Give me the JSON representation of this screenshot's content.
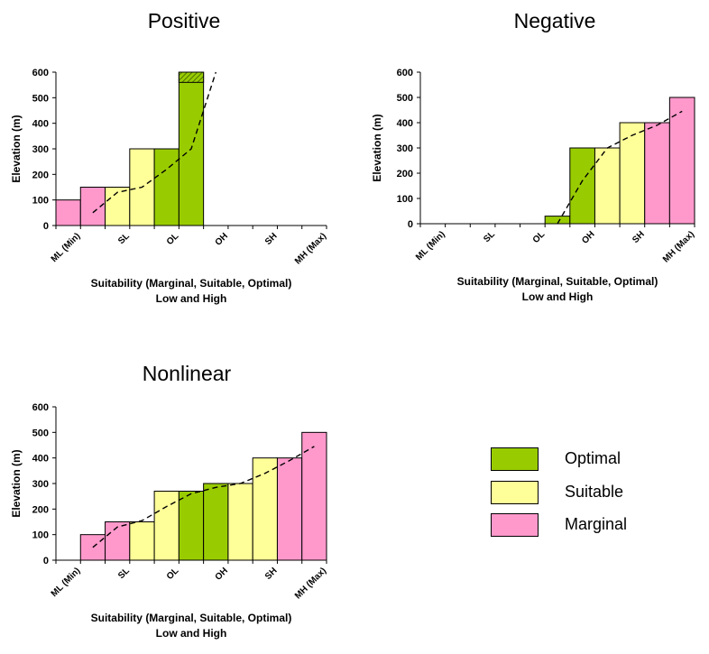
{
  "colors": {
    "optimal": "#99cc00",
    "suitable": "#ffff99",
    "marginal": "#ff99cc"
  },
  "legend": {
    "items": [
      {
        "label": "Optimal",
        "class": "optimal"
      },
      {
        "label": "Suitable",
        "class": "suitable"
      },
      {
        "label": "Marginal",
        "class": "marginal"
      }
    ]
  },
  "chart_data": [
    {
      "type": "bar",
      "title": "Positive",
      "xlabel_line1": "Suitability (Marginal, Suitable, Optimal)",
      "xlabel_line2": "Low and High",
      "ylabel": "Elevation (m)",
      "ylim": [
        0,
        600
      ],
      "yticks": [
        "0",
        "100",
        "200",
        "300",
        "400",
        "500",
        "600"
      ],
      "categories": [
        "ML (Min)",
        "SL",
        "OL",
        "OH",
        "SH",
        "MH (Max)"
      ],
      "bars": [
        {
          "value": 100,
          "class": "marginal"
        },
        {
          "value": 150,
          "class": "marginal"
        },
        {
          "value": 150,
          "class": "suitable"
        },
        {
          "value": 300,
          "class": "suitable"
        },
        {
          "value": 300,
          "class": "optimal"
        },
        {
          "value": 600,
          "class": "optimal",
          "hatched_from": 560
        },
        {
          "value": 0,
          "class": "none"
        },
        {
          "value": 0,
          "class": "none"
        },
        {
          "value": 0,
          "class": "none"
        },
        {
          "value": 0,
          "class": "none"
        },
        {
          "value": 0,
          "class": "none"
        }
      ],
      "trend": [
        [
          1.5,
          50
        ],
        [
          2.5,
          130
        ],
        [
          3.5,
          150
        ],
        [
          4.5,
          220
        ],
        [
          5.5,
          300
        ],
        [
          6.5,
          600
        ]
      ]
    },
    {
      "type": "bar",
      "title": "Negative",
      "xlabel_line1": "Suitability (Marginal, Suitable, Optimal)",
      "xlabel_line2": "Low and High",
      "ylabel": "Elevation (m)",
      "ylim": [
        0,
        600
      ],
      "yticks": [
        "0",
        "100",
        "200",
        "300",
        "400",
        "500",
        "600"
      ],
      "categories": [
        "ML (Min)",
        "SL",
        "OL",
        "OH",
        "SH",
        "MH (Max)"
      ],
      "bars": [
        {
          "value": 0,
          "class": "none"
        },
        {
          "value": 0,
          "class": "none"
        },
        {
          "value": 0,
          "class": "none"
        },
        {
          "value": 0,
          "class": "none"
        },
        {
          "value": 0,
          "class": "none"
        },
        {
          "value": 30,
          "class": "optimal"
        },
        {
          "value": 300,
          "class": "optimal"
        },
        {
          "value": 300,
          "class": "suitable"
        },
        {
          "value": 400,
          "class": "suitable"
        },
        {
          "value": 400,
          "class": "marginal"
        },
        {
          "value": 500,
          "class": "marginal"
        }
      ],
      "trend": [
        [
          5.5,
          0
        ],
        [
          6.5,
          170
        ],
        [
          7.5,
          300
        ],
        [
          8.5,
          350
        ],
        [
          9.5,
          390
        ],
        [
          10.5,
          445
        ]
      ]
    },
    {
      "type": "bar",
      "title": "Nonlinear",
      "xlabel_line1": "Suitability (Marginal, Suitable, Optimal)",
      "xlabel_line2": "Low and High",
      "ylabel": "Elevation (m)",
      "ylim": [
        0,
        600
      ],
      "yticks": [
        "0",
        "100",
        "200",
        "300",
        "400",
        "500",
        "600"
      ],
      "categories": [
        "ML (Min)",
        "SL",
        "OL",
        "OH",
        "SH",
        "MH (Max)"
      ],
      "bars": [
        {
          "value": 0,
          "class": "none"
        },
        {
          "value": 100,
          "class": "marginal"
        },
        {
          "value": 150,
          "class": "marginal"
        },
        {
          "value": 150,
          "class": "suitable"
        },
        {
          "value": 270,
          "class": "suitable"
        },
        {
          "value": 270,
          "class": "optimal"
        },
        {
          "value": 300,
          "class": "optimal"
        },
        {
          "value": 300,
          "class": "suitable"
        },
        {
          "value": 400,
          "class": "suitable"
        },
        {
          "value": 400,
          "class": "marginal"
        },
        {
          "value": 500,
          "class": "marginal"
        }
      ],
      "trend": [
        [
          1.5,
          50
        ],
        [
          2.5,
          130
        ],
        [
          3.5,
          155
        ],
        [
          4.5,
          210
        ],
        [
          5.5,
          260
        ],
        [
          6.5,
          285
        ],
        [
          7.5,
          300
        ],
        [
          8.5,
          340
        ],
        [
          9.5,
          390
        ],
        [
          10.5,
          445
        ]
      ]
    }
  ]
}
